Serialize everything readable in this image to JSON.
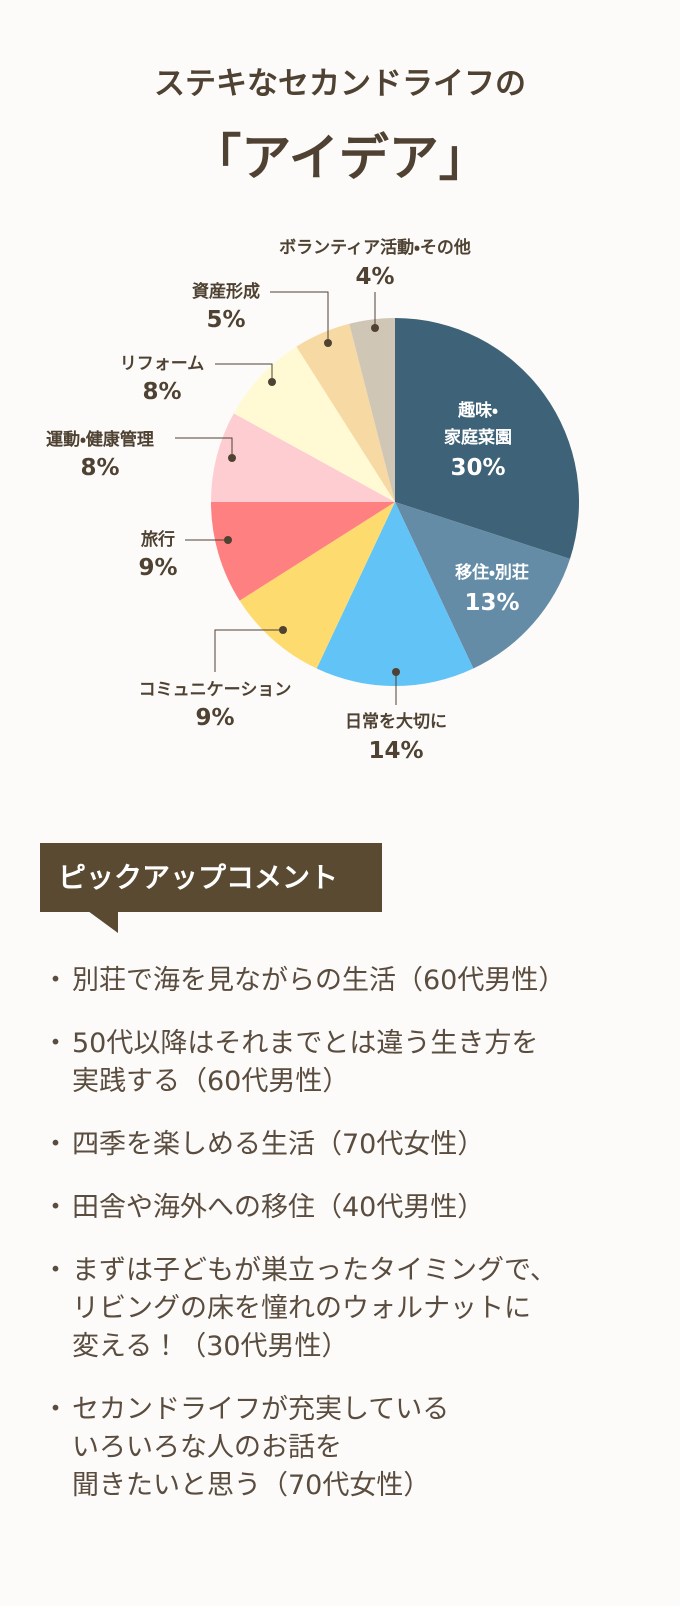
{
  "title": [
    "ステキなセカンドライフの",
    "「アイデア」"
  ],
  "chart_data": {
    "type": "pie",
    "categories": [
      "趣味・\n家庭菜園",
      "移住・別荘",
      "日常を大切に",
      "コミュニケーション",
      "旅行",
      "運動・健康管理",
      "リフォーム",
      "資産形成",
      "ボランティア活動・その他"
    ],
    "values": [
      30,
      13,
      14,
      9,
      9,
      8,
      8,
      5,
      4
    ],
    "value_labels": [
      "30%",
      "13%",
      "14%",
      "9%",
      "9%",
      "8%",
      "8%",
      "5%",
      "4%"
    ],
    "colors": [
      "#3e6277",
      "#648ca7",
      "#62c3f7",
      "#fedb6e",
      "#fe8080",
      "#fecdd1",
      "#fffad4",
      "#f7d9a4",
      "#d0c6b6"
    ]
  },
  "comments": {
    "heading": "ピックアップコメント",
    "items": [
      "別荘で海を見ながらの生活（60代男性）",
      "50代以降はそれまでとは違う生き方を\n実践する（60代男性）",
      "四季を楽しめる生活（70代女性）",
      "田舎や海外への移住（40代男性）",
      "まずは子どもが巣立ったタイミングで、\nリビングの床を憧れのウォルナットに\n変える！（30代男性）",
      "セカンドライフが充実している\nいろいろな人のお話を\n聞きたいと思う（70代女性）"
    ]
  }
}
